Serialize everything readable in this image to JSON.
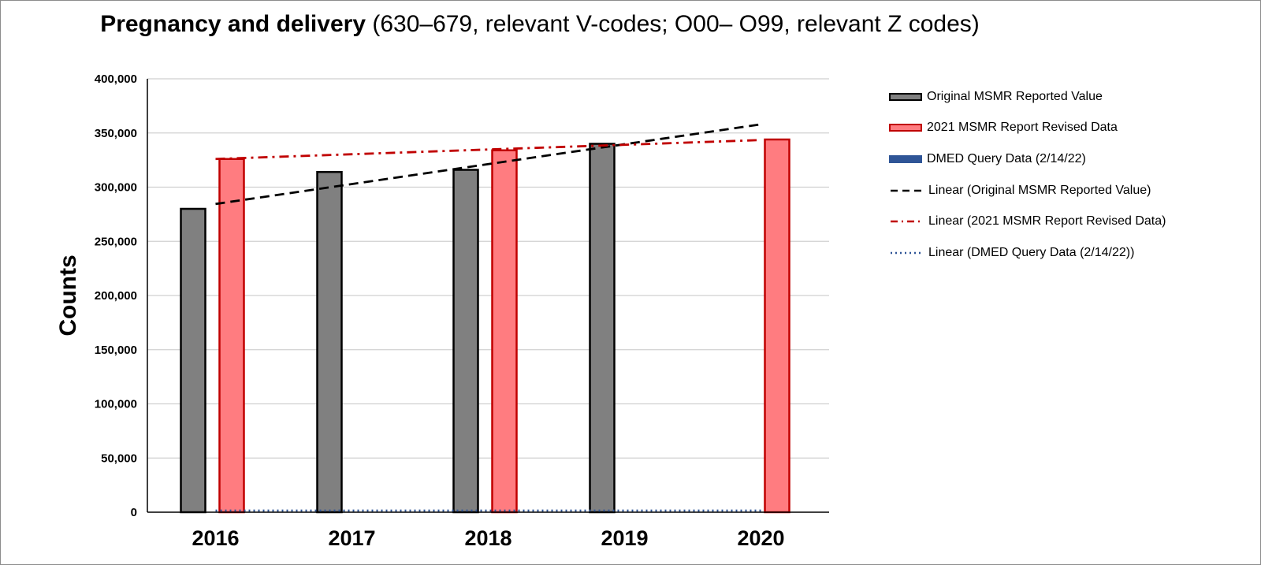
{
  "chart_data": {
    "type": "bar",
    "title_bold": "Pregnancy and delivery",
    "title_rest": " (630–679, relevant V-codes; O00– O99, relevant Z codes)",
    "ylabel": "Counts",
    "xlabel": "",
    "ylim": [
      0,
      400000
    ],
    "yticks": [
      0,
      50000,
      100000,
      150000,
      200000,
      250000,
      300000,
      350000,
      400000
    ],
    "ytick_labels": [
      "0",
      "50,000",
      "100,000",
      "150,000",
      "200,000",
      "250,000",
      "300,000",
      "350,000",
      "400,000"
    ],
    "grid": true,
    "legend_position": "right",
    "categories": [
      "2016",
      "2017",
      "2018",
      "2019",
      "2020"
    ],
    "series": [
      {
        "name": "Original MSMR Reported Value",
        "type": "bar",
        "values": [
          280000,
          314000,
          316000,
          340000,
          null
        ],
        "fill": "#808080",
        "stroke": "#000000"
      },
      {
        "name": "2021 MSMR Report Revised Data",
        "type": "bar",
        "values": [
          326000,
          null,
          334000,
          null,
          344000
        ],
        "fill": "#ff7c80",
        "stroke": "#c00000"
      },
      {
        "name": "DMED Query Data (2/14/22)",
        "type": "bar",
        "values": [
          0,
          0,
          0,
          0,
          0
        ],
        "fill": "#2f5597",
        "stroke": "#2f5597"
      }
    ],
    "trendlines": [
      {
        "name": "Linear (Original MSMR Reported Value)",
        "from": [
          2016,
          284500
        ],
        "to": [
          2020,
          358000
        ],
        "color": "#000000",
        "dash": "dash"
      },
      {
        "name": "Linear (2021 MSMR Report Revised Data)",
        "from": [
          2016,
          326000
        ],
        "to": [
          2020,
          343500
        ],
        "color": "#c00000",
        "dash": "dashdot"
      },
      {
        "name": "Linear (DMED Query Data (2/14/22))",
        "from": [
          2016,
          0
        ],
        "to": [
          2020,
          0
        ],
        "color": "#2f5597",
        "dash": "dot"
      }
    ]
  }
}
